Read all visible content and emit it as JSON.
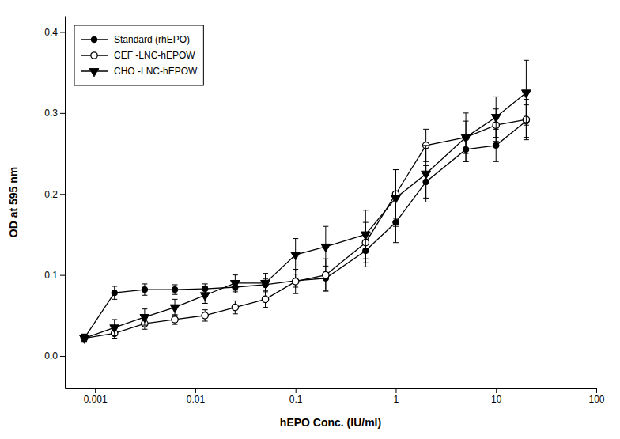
{
  "chart_data": {
    "type": "line",
    "xlabel": "hEPO  Conc. (IU/ml)",
    "ylabel": "OD at 595 nm",
    "log": "x",
    "xlim": [
      0.0005,
      100
    ],
    "ylim": [
      -0.04,
      0.42
    ],
    "xticks": [
      0.001,
      0.01,
      0.1,
      1,
      10,
      100
    ],
    "yticks": [
      {
        "value": 0.0,
        "label": "0.0"
      },
      0.1,
      0.2,
      0.3,
      0.4
    ],
    "grid": false,
    "legend": "upper left",
    "x": [
      0.00078125,
      0.0015625,
      0.003125,
      0.00625,
      0.0125,
      0.025,
      0.05,
      0.1,
      0.2,
      0.5,
      1.0,
      2.0,
      5.0,
      10.0,
      20.0
    ],
    "series": [
      {
        "name": "Standard (rhEPO)",
        "color": "#000000",
        "marker": "circle",
        "line_style": "solid",
        "values": [
          0.022,
          0.078,
          0.082,
          0.082,
          0.083,
          0.085,
          0.088,
          0.093,
          0.096,
          0.13,
          0.165,
          0.215,
          0.255,
          0.26,
          0.29
        ],
        "errors": [
          0.005,
          0.008,
          0.007,
          0.006,
          0.006,
          0.007,
          0.007,
          0.008,
          0.015,
          0.02,
          0.025,
          0.02,
          0.015,
          0.02,
          0.02
        ]
      },
      {
        "name": "CEF  -LNC-hEPOW",
        "color": "#000000",
        "marker": "open-circle",
        "line_style": "solid",
        "values": [
          0.022,
          0.028,
          0.04,
          0.045,
          0.05,
          0.06,
          0.07,
          0.092,
          0.1,
          0.14,
          0.2,
          0.26,
          0.27,
          0.285,
          0.292
        ],
        "errors": [
          0.004,
          0.006,
          0.007,
          0.006,
          0.007,
          0.008,
          0.01,
          0.015,
          0.02,
          0.025,
          0.03,
          0.02,
          0.02,
          0.02,
          0.025
        ]
      },
      {
        "name": "CHO -LNC-hEPOW",
        "color": "#000000",
        "marker": "triangle-down",
        "line_style": "solid",
        "values": [
          0.022,
          0.035,
          0.048,
          0.06,
          0.075,
          0.09,
          0.09,
          0.125,
          0.135,
          0.15,
          0.195,
          0.225,
          0.27,
          0.295,
          0.325
        ],
        "errors": [
          0.005,
          0.01,
          0.01,
          0.01,
          0.01,
          0.01,
          0.012,
          0.02,
          0.025,
          0.03,
          0.035,
          0.035,
          0.03,
          0.025,
          0.04
        ]
      }
    ]
  }
}
